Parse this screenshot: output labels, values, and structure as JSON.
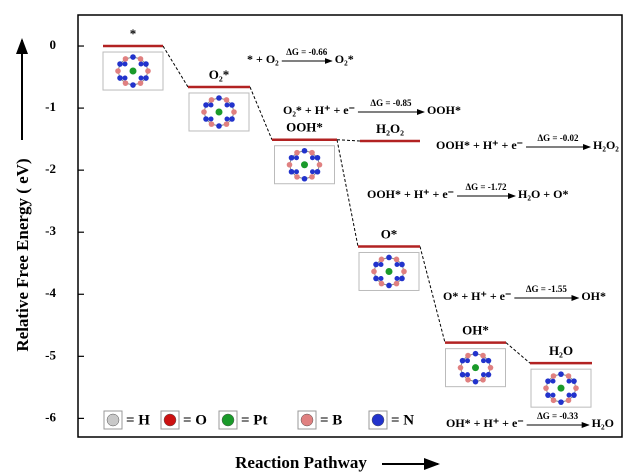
{
  "chart_data": {
    "type": "energy-levels",
    "ylabel": "Relative Free Energy ( eV)",
    "xlabel": "Reaction Pathway",
    "ylim": [
      -6.3,
      0.5
    ],
    "yticks": [
      0,
      -1,
      -2,
      -3,
      -4,
      -5,
      -6
    ],
    "level_color": "#b22222",
    "levels": [
      {
        "label": "*",
        "value": 0
      },
      {
        "label": "O₂*",
        "value": -0.66
      },
      {
        "label": "OOH*",
        "value": -1.51
      },
      {
        "label": "H₂O₂",
        "value": -1.53
      },
      {
        "label": "O*",
        "value": -3.23
      },
      {
        "label": "OH*",
        "value": -4.78
      },
      {
        "label": "H₂O",
        "value": -5.11
      }
    ],
    "reactions": [
      {
        "left": "* + O₂",
        "dg": "ΔG = -0.66",
        "right": "O₂*"
      },
      {
        "left": "O₂* + H⁺ + e⁻",
        "dg": "ΔG = -0.85",
        "right": "OOH*"
      },
      {
        "left": "OOH* + H⁺ + e⁻",
        "dg": "ΔG = -0.02",
        "right": "H₂O₂"
      },
      {
        "left": "OOH* + H⁺ + e⁻",
        "dg": "ΔG = -1.72",
        "right": "H₂O + O*"
      },
      {
        "left": "O* + H⁺ + e⁻",
        "dg": "ΔG = -1.55",
        "right": "OH*"
      },
      {
        "left": "OH* + H⁺ + e⁻",
        "dg": "ΔG = -0.33",
        "right": "H₂O"
      }
    ],
    "legend": [
      {
        "name": "= H",
        "color": "#c8c8c8"
      },
      {
        "name": "= O",
        "color": "#cc1111"
      },
      {
        "name": "= Pt",
        "color": "#1a9a2a"
      },
      {
        "name": "= B",
        "color": "#e08080"
      },
      {
        "name": "= N",
        "color": "#2233cc"
      }
    ]
  }
}
